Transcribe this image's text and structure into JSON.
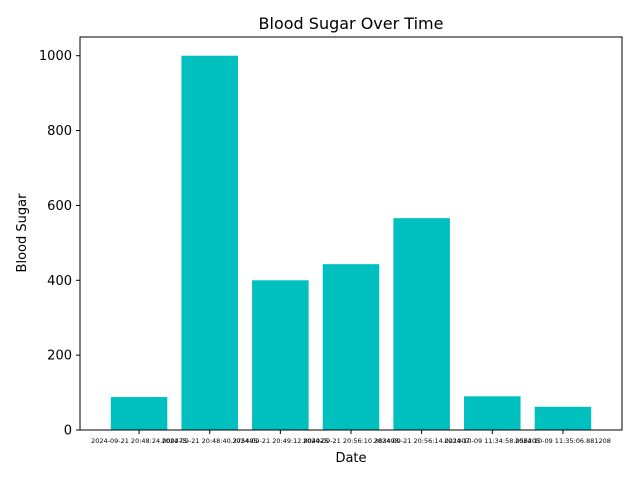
{
  "chart_data": {
    "type": "bar",
    "title": "Blood Sugar Over Time",
    "xlabel": "Date",
    "ylabel": "Blood Sugar",
    "ylim": [
      0,
      1050
    ],
    "yticks": [
      0,
      200,
      400,
      600,
      800,
      1000
    ],
    "categories": [
      "2024-09-21 20:48:24.000275",
      "2024-09-21 20:48:40.375495",
      "2024-09-21 20:49:12.804025",
      "2024-09-21 20:56:10.383498",
      "2024-09-21 20:56:14.021007",
      "2024-10-09 11:34:58.056205",
      "2024-10-09 11:35:06.881208"
    ],
    "values": [
      88,
      1000,
      400,
      443,
      566,
      90,
      62
    ],
    "bar_color": "#00bfbf",
    "grid": false,
    "legend": "none"
  }
}
